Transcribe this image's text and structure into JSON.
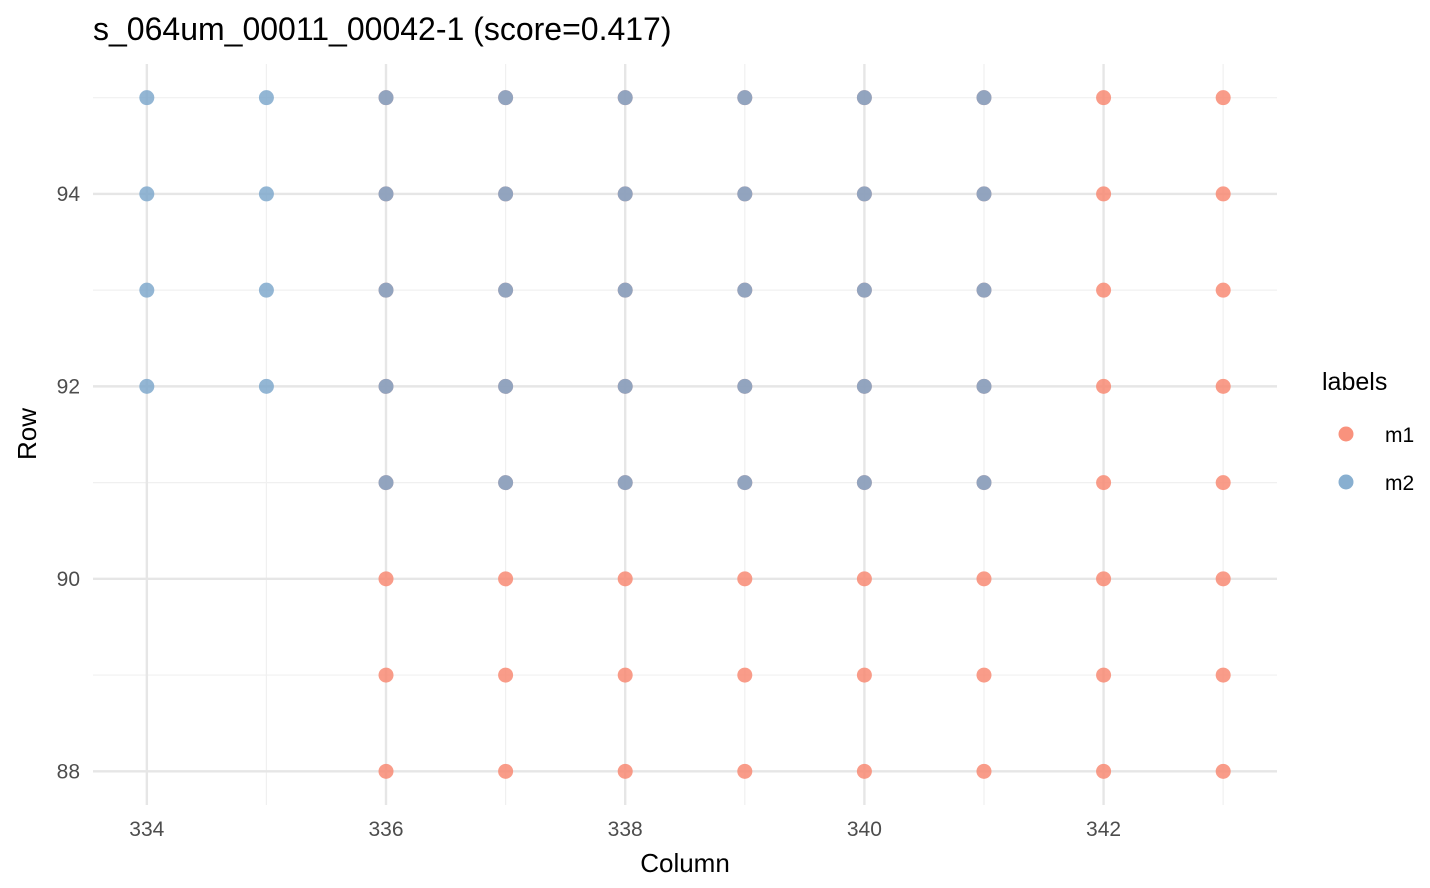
{
  "chart_data": {
    "type": "scatter",
    "title": "s_064um_00011_00042-1  (score=0.417)",
    "xlabel": "Column",
    "ylabel": "Row",
    "xlim": [
      333.55,
      343.45
    ],
    "ylim": [
      87.65,
      95.35
    ],
    "x_ticks": [
      334,
      336,
      338,
      340,
      342
    ],
    "x_minor_ticks": [
      335,
      337,
      339,
      341,
      343
    ],
    "y_ticks": [
      88,
      90,
      92,
      94
    ],
    "y_minor_ticks": [
      89,
      91,
      93,
      95
    ],
    "grid": true,
    "legend": {
      "title": "labels",
      "placement": "right",
      "entries": [
        {
          "label": "m1",
          "color": "#F8866F"
        },
        {
          "label": "m2",
          "color": "#7BA6CB"
        }
      ]
    },
    "colors": {
      "m1": "#F8866F",
      "m2": "#7BA6CB",
      "overlap": "#7A7D96"
    },
    "series": [
      {
        "name": "m1",
        "points": [
          [
            336,
            88
          ],
          [
            337,
            88
          ],
          [
            338,
            88
          ],
          [
            339,
            88
          ],
          [
            340,
            88
          ],
          [
            341,
            88
          ],
          [
            342,
            88
          ],
          [
            343,
            88
          ],
          [
            336,
            89
          ],
          [
            337,
            89
          ],
          [
            338,
            89
          ],
          [
            339,
            89
          ],
          [
            340,
            89
          ],
          [
            341,
            89
          ],
          [
            342,
            89
          ],
          [
            343,
            89
          ],
          [
            336,
            90
          ],
          [
            337,
            90
          ],
          [
            338,
            90
          ],
          [
            339,
            90
          ],
          [
            340,
            90
          ],
          [
            341,
            90
          ],
          [
            342,
            90
          ],
          [
            343,
            90
          ],
          [
            336,
            91
          ],
          [
            337,
            91
          ],
          [
            338,
            91
          ],
          [
            339,
            91
          ],
          [
            340,
            91
          ],
          [
            341,
            91
          ],
          [
            342,
            91
          ],
          [
            343,
            91
          ],
          [
            336,
            92
          ],
          [
            337,
            92
          ],
          [
            338,
            92
          ],
          [
            339,
            92
          ],
          [
            340,
            92
          ],
          [
            341,
            92
          ],
          [
            342,
            92
          ],
          [
            343,
            92
          ],
          [
            336,
            93
          ],
          [
            337,
            93
          ],
          [
            338,
            93
          ],
          [
            339,
            93
          ],
          [
            340,
            93
          ],
          [
            341,
            93
          ],
          [
            342,
            93
          ],
          [
            343,
            93
          ],
          [
            336,
            94
          ],
          [
            337,
            94
          ],
          [
            338,
            94
          ],
          [
            339,
            94
          ],
          [
            340,
            94
          ],
          [
            341,
            94
          ],
          [
            342,
            94
          ],
          [
            343,
            94
          ],
          [
            336,
            95
          ],
          [
            337,
            95
          ],
          [
            338,
            95
          ],
          [
            339,
            95
          ],
          [
            340,
            95
          ],
          [
            341,
            95
          ],
          [
            342,
            95
          ],
          [
            343,
            95
          ]
        ]
      },
      {
        "name": "m2",
        "points": [
          [
            334,
            92
          ],
          [
            335,
            92
          ],
          [
            336,
            92
          ],
          [
            337,
            92
          ],
          [
            338,
            92
          ],
          [
            339,
            92
          ],
          [
            340,
            92
          ],
          [
            341,
            92
          ],
          [
            334,
            93
          ],
          [
            335,
            93
          ],
          [
            336,
            93
          ],
          [
            337,
            93
          ],
          [
            338,
            93
          ],
          [
            339,
            93
          ],
          [
            340,
            93
          ],
          [
            341,
            93
          ],
          [
            334,
            94
          ],
          [
            335,
            94
          ],
          [
            336,
            94
          ],
          [
            337,
            94
          ],
          [
            338,
            94
          ],
          [
            339,
            94
          ],
          [
            340,
            94
          ],
          [
            341,
            94
          ],
          [
            334,
            95
          ],
          [
            335,
            95
          ],
          [
            336,
            95
          ],
          [
            337,
            95
          ],
          [
            338,
            95
          ],
          [
            339,
            95
          ],
          [
            340,
            95
          ],
          [
            341,
            95
          ],
          [
            336,
            91
          ],
          [
            337,
            91
          ],
          [
            338,
            91
          ],
          [
            339,
            91
          ],
          [
            340,
            91
          ],
          [
            341,
            91
          ]
        ]
      }
    ]
  }
}
